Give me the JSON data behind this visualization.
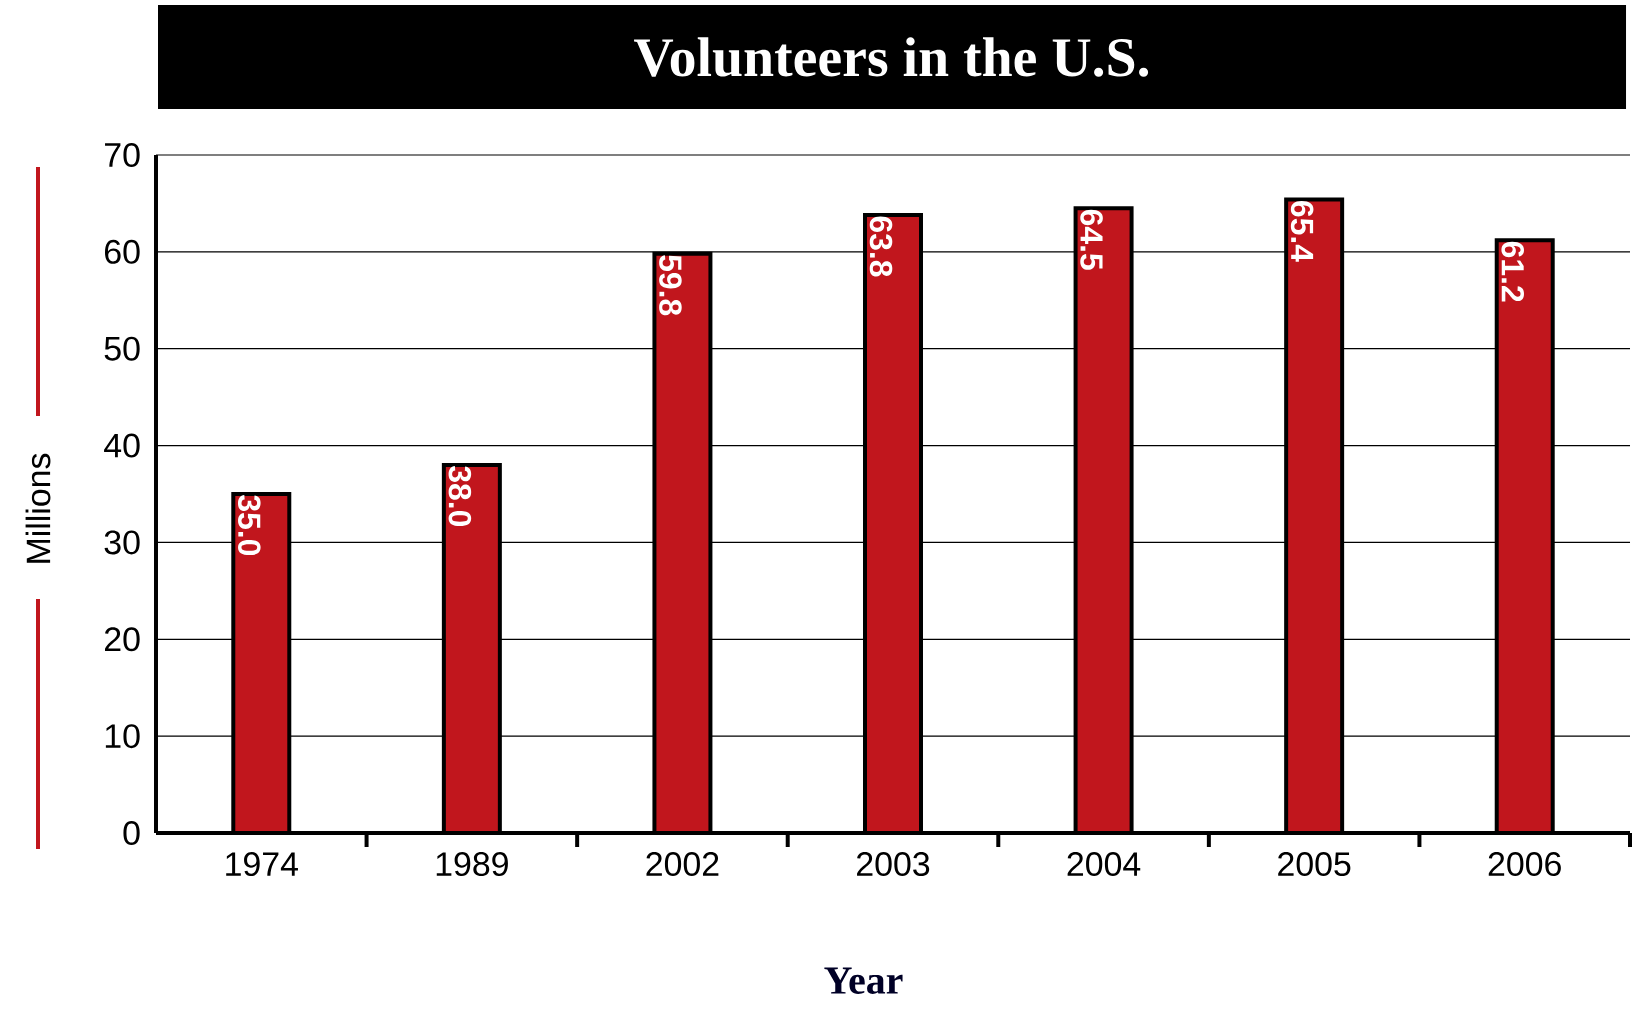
{
  "chart_data": {
    "type": "bar",
    "title": "Volunteers in the U.S.",
    "xlabel": "Year",
    "ylabel": "Millions",
    "categories": [
      "1974",
      "1989",
      "2002",
      "2003",
      "2004",
      "2005",
      "2006"
    ],
    "values": [
      35.0,
      38.0,
      59.8,
      63.8,
      64.5,
      65.4,
      61.2
    ],
    "value_labels": [
      "35.0",
      "38.0",
      "59.8",
      "63.8",
      "64.5",
      "65.4",
      "61.2"
    ],
    "color": "#c1161d",
    "ylim": [
      0,
      70
    ],
    "yticks": [
      0,
      10,
      20,
      30,
      40,
      50,
      60,
      70
    ],
    "grid": "y"
  }
}
